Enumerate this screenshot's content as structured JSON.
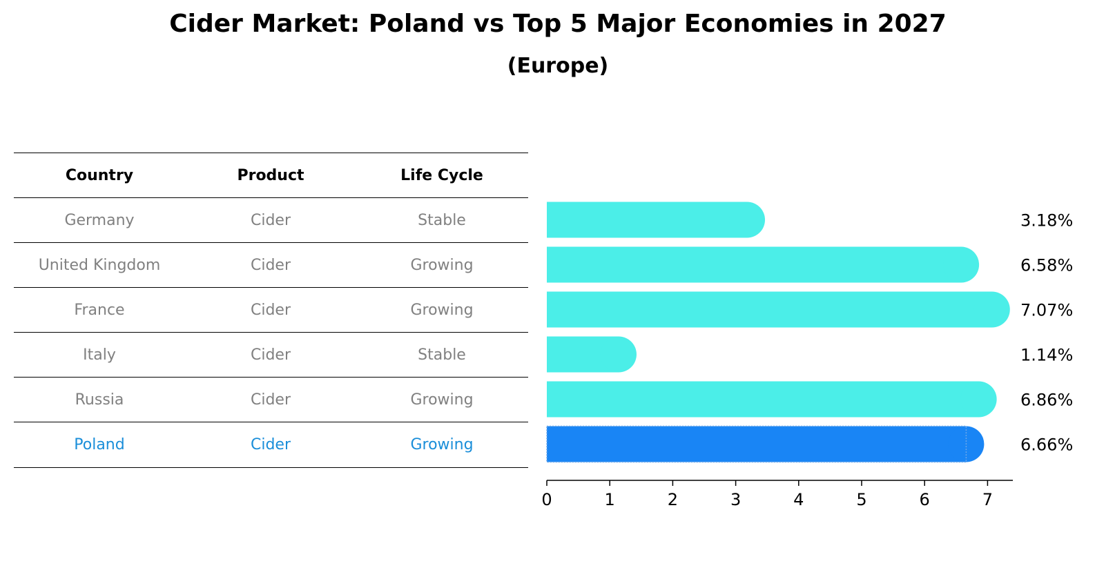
{
  "title": "Cider Market: Poland vs Top 5 Major Economies in 2027",
  "subtitle": "(Europe)",
  "table": {
    "headers": [
      "Country",
      "Product",
      "Life Cycle"
    ],
    "rows": [
      {
        "country": "Germany",
        "product": "Cider",
        "life_cycle": "Stable"
      },
      {
        "country": "United Kingdom",
        "product": "Cider",
        "life_cycle": "Growing"
      },
      {
        "country": "France",
        "product": "Cider",
        "life_cycle": "Growing"
      },
      {
        "country": "Italy",
        "product": "Cider",
        "life_cycle": "Stable"
      },
      {
        "country": "Russia",
        "product": "Cider",
        "life_cycle": "Growing"
      },
      {
        "country": "Poland",
        "product": "Cider",
        "life_cycle": "Growing"
      }
    ]
  },
  "chart_data": {
    "type": "bar",
    "orientation": "horizontal",
    "categories": [
      "Germany",
      "United Kingdom",
      "France",
      "Italy",
      "Russia",
      "Poland"
    ],
    "values": [
      3.18,
      6.58,
      7.07,
      1.14,
      6.86,
      6.66
    ],
    "value_labels": [
      "3.18%",
      "6.58%",
      "7.07%",
      "1.14%",
      "6.86%",
      "6.66%"
    ],
    "xlim": [
      0,
      7.4
    ],
    "xticks": [
      0,
      1,
      2,
      3,
      4,
      5,
      6,
      7
    ],
    "highlight_category": "Poland",
    "colors": {
      "default": "#4beee8",
      "highlight": "#1985f5",
      "highlight_text": "#1a8ed9",
      "muted_text": "#808080"
    }
  }
}
